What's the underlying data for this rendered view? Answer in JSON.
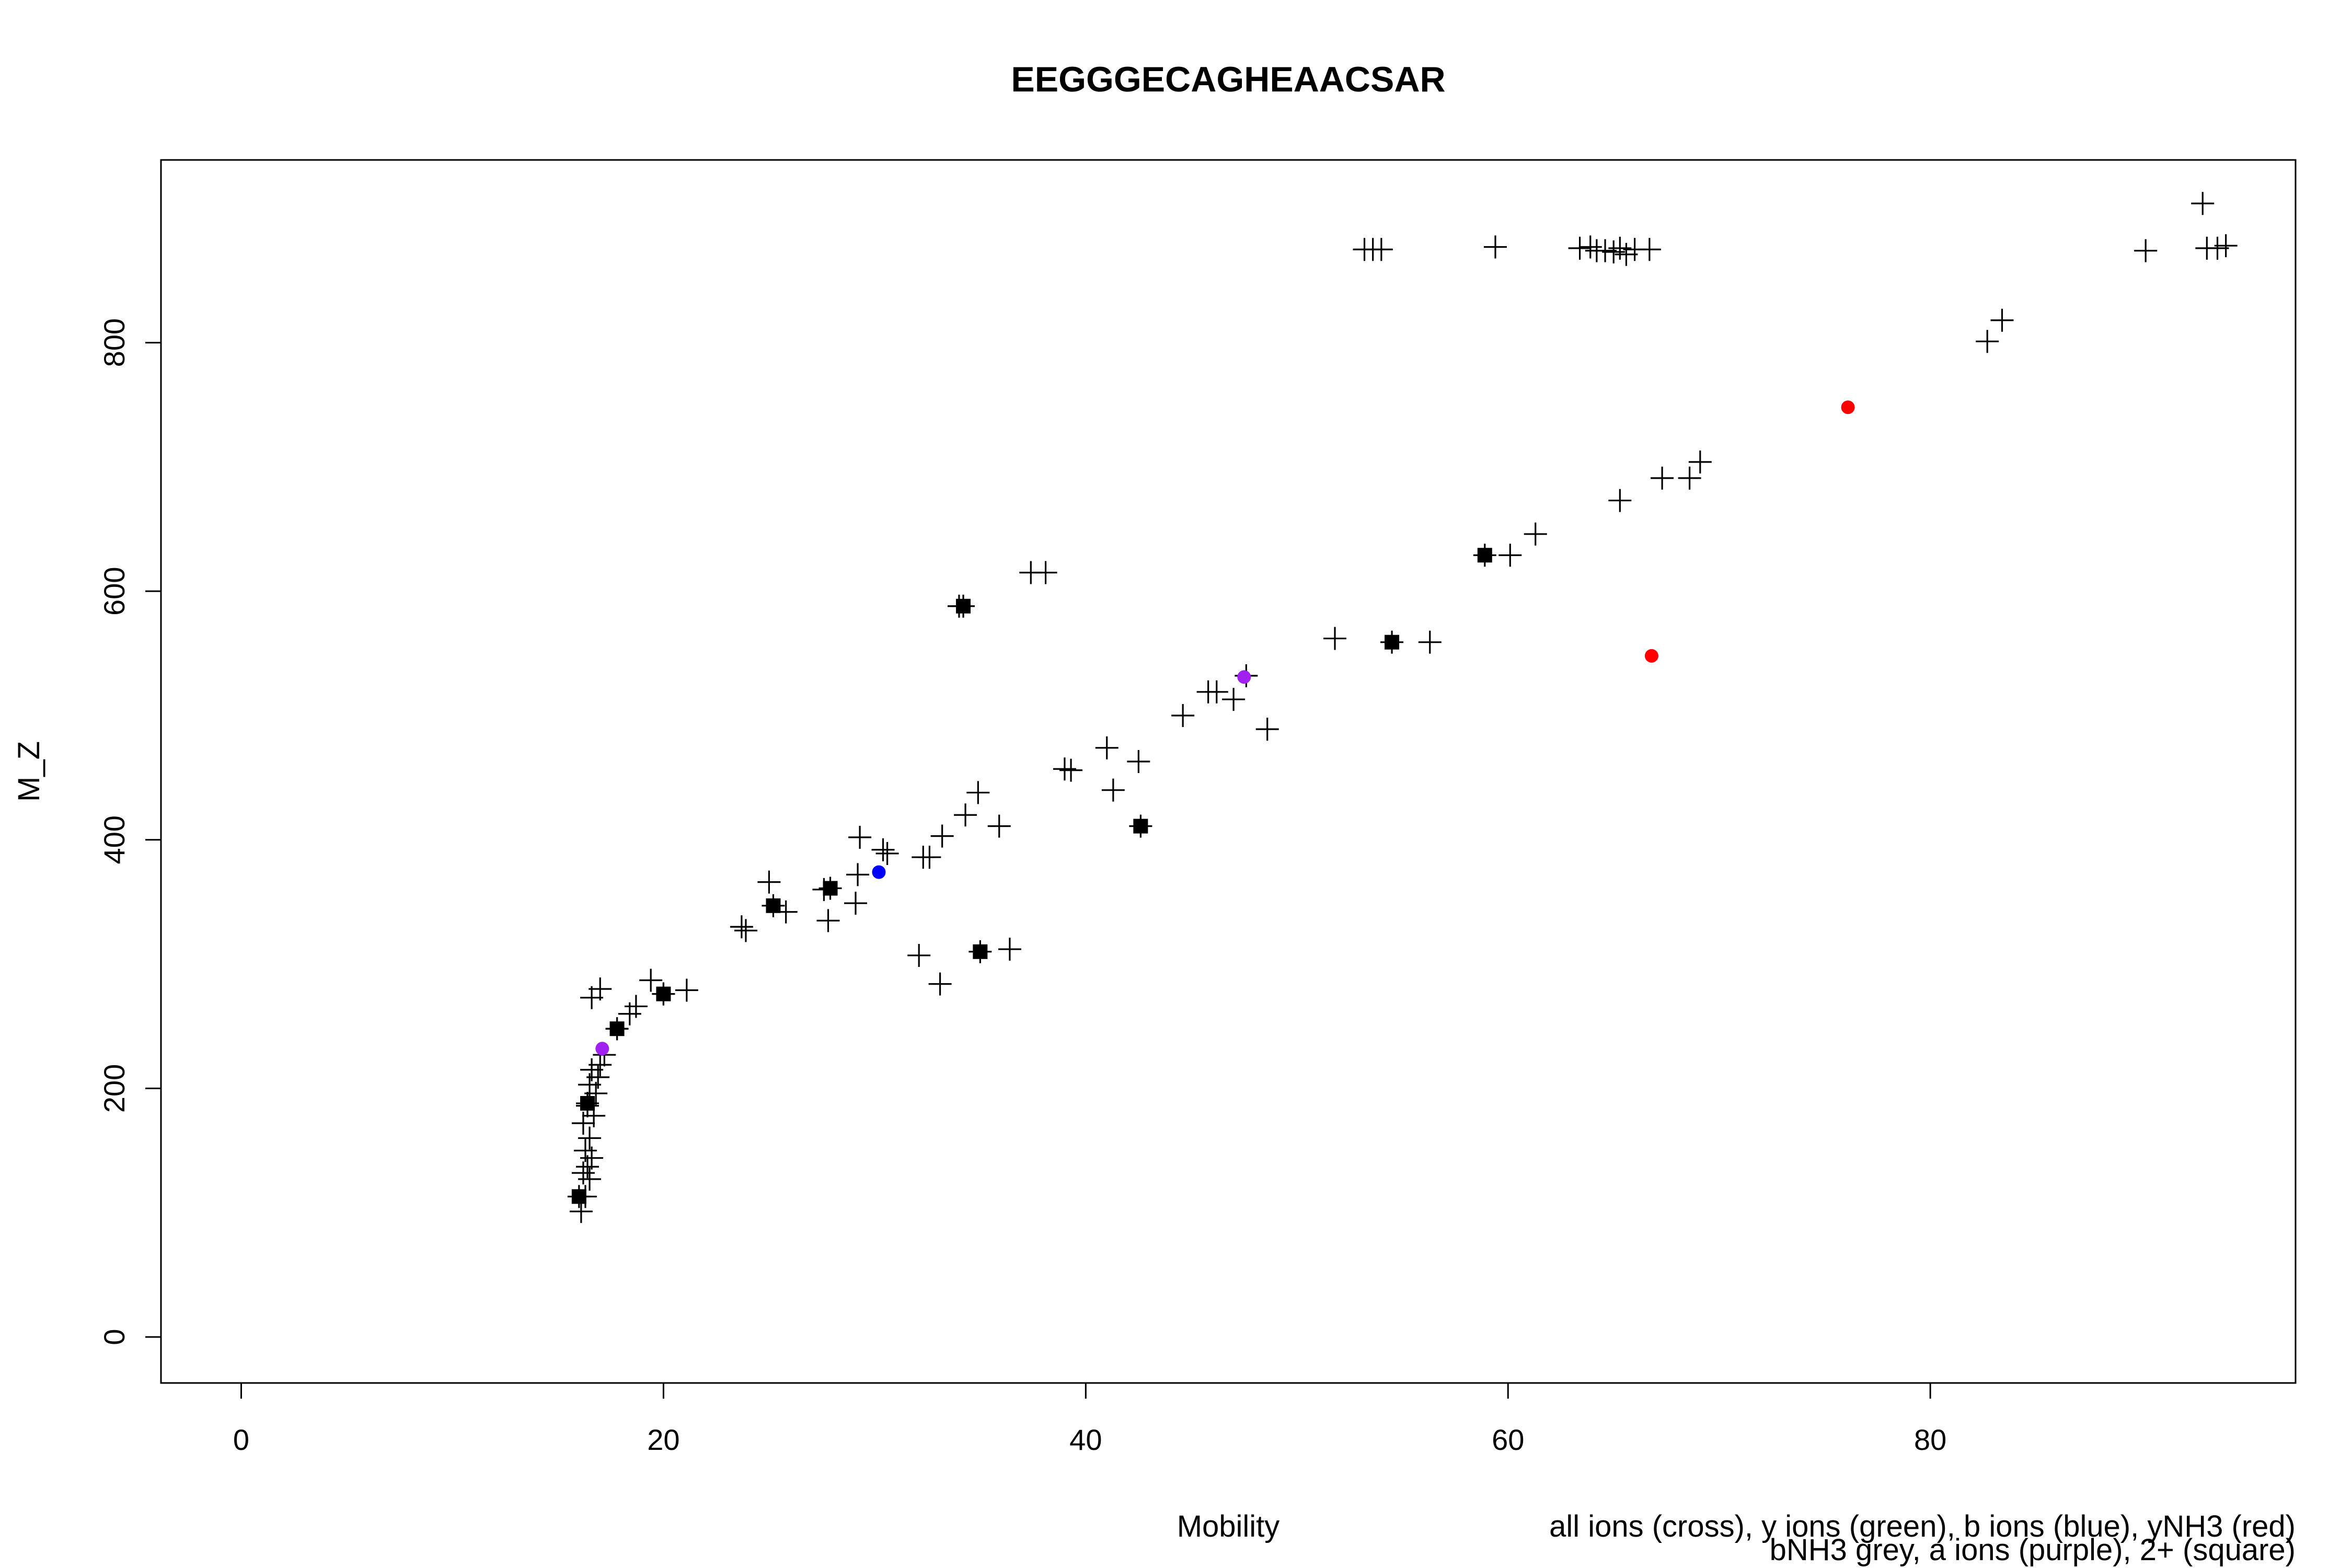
{
  "chart_data": {
    "type": "scatter",
    "title": "EEGGGECAGHEAACSAR",
    "xlabel": "Mobility",
    "ylabel": "M_Z",
    "xlim": [
      -3.8,
      97.3
    ],
    "ylim": [
      -37,
      947
    ],
    "xticks": [
      0,
      20,
      40,
      60,
      80
    ],
    "yticks": [
      0,
      200,
      400,
      600,
      800
    ],
    "grid": false,
    "legend_lines": [
      "all ions (cross), y ions (green), b ions (blue), yNH3 (red)",
      "bNH3 grey, a ions (purple), 2+ (square)"
    ],
    "colors": {
      "all": "#000000",
      "y": "#00a000",
      "b": "#0000ff",
      "yNH3": "#ff0000",
      "bNH3": "#808080",
      "a": "#a020f0",
      "doubly_charged": "#000000"
    },
    "series": [
      {
        "name": "all ions (cross)",
        "marker": "cross",
        "points": [
          [
            16.1,
            101
          ],
          [
            16.3,
            113
          ],
          [
            16.5,
            127
          ],
          [
            16.2,
            132
          ],
          [
            16.4,
            137
          ],
          [
            16.6,
            144
          ],
          [
            16.3,
            150
          ],
          [
            16.5,
            160
          ],
          [
            16.2,
            172
          ],
          [
            16.7,
            178
          ],
          [
            16.4,
            186
          ],
          [
            16.8,
            196
          ],
          [
            16.5,
            203
          ],
          [
            16.9,
            209
          ],
          [
            16.6,
            215
          ],
          [
            17.0,
            219
          ],
          [
            17.2,
            227
          ],
          [
            16.6,
            273
          ],
          [
            17.0,
            280
          ],
          [
            17.8,
            248
          ],
          [
            18.4,
            260
          ],
          [
            18.7,
            266
          ],
          [
            19.4,
            287
          ],
          [
            20.0,
            276
          ],
          [
            21.1,
            279
          ],
          [
            23.7,
            330
          ],
          [
            23.9,
            327
          ],
          [
            25.0,
            366
          ],
          [
            25.8,
            342
          ],
          [
            27.6,
            360
          ],
          [
            27.8,
            335
          ],
          [
            29.1,
            349
          ],
          [
            29.2,
            372
          ],
          [
            29.3,
            402
          ],
          [
            30.4,
            392
          ],
          [
            30.6,
            389
          ],
          [
            32.3,
            386
          ],
          [
            32.6,
            386
          ],
          [
            33.2,
            403
          ],
          [
            34.3,
            420
          ],
          [
            34.9,
            438
          ],
          [
            35.9,
            411
          ],
          [
            32.1,
            307
          ],
          [
            33.1,
            284
          ],
          [
            36.4,
            312
          ],
          [
            34.0,
            588
          ],
          [
            37.4,
            615
          ],
          [
            38.1,
            615
          ],
          [
            39.0,
            457
          ],
          [
            39.3,
            456
          ],
          [
            41.0,
            474
          ],
          [
            41.3,
            440
          ],
          [
            42.5,
            463
          ],
          [
            44.6,
            500
          ],
          [
            45.8,
            519
          ],
          [
            46.2,
            519
          ],
          [
            47.0,
            513
          ],
          [
            47.6,
            532
          ],
          [
            48.6,
            489
          ],
          [
            51.8,
            562
          ],
          [
            56.3,
            559
          ],
          [
            60.1,
            629
          ],
          [
            61.3,
            646
          ],
          [
            65.3,
            673
          ],
          [
            67.3,
            691
          ],
          [
            68.6,
            691
          ],
          [
            69.1,
            704
          ],
          [
            82.7,
            801
          ],
          [
            83.4,
            818
          ],
          [
            53.2,
            875
          ],
          [
            53.6,
            875
          ],
          [
            54.0,
            875
          ],
          [
            59.4,
            877
          ],
          [
            63.4,
            876
          ],
          [
            63.9,
            877
          ],
          [
            64.2,
            874
          ],
          [
            64.6,
            874
          ],
          [
            65.0,
            873
          ],
          [
            65.3,
            876
          ],
          [
            65.6,
            871
          ],
          [
            66.0,
            875
          ],
          [
            66.7,
            875
          ],
          [
            90.2,
            874
          ],
          [
            92.9,
            912
          ],
          [
            93.1,
            876
          ],
          [
            93.6,
            876
          ],
          [
            94.0,
            878
          ]
        ]
      },
      {
        "name": "2+ (square)",
        "marker": "square",
        "points": [
          [
            16.0,
            113
          ],
          [
            16.4,
            188
          ],
          [
            17.8,
            248
          ],
          [
            20.0,
            276
          ],
          [
            25.2,
            347
          ],
          [
            27.9,
            361
          ],
          [
            34.2,
            588
          ],
          [
            35.0,
            310
          ],
          [
            42.6,
            411
          ],
          [
            54.5,
            559
          ],
          [
            58.9,
            629
          ]
        ]
      },
      {
        "name": "b ions (blue)",
        "marker": "dot",
        "color": "#0000ff",
        "points": [
          [
            30.2,
            374
          ]
        ]
      },
      {
        "name": "yNH3 (red)",
        "marker": "dot",
        "color": "#ff0000",
        "points": [
          [
            76.1,
            748
          ],
          [
            66.8,
            548
          ]
        ]
      },
      {
        "name": "a ions (purple)",
        "marker": "dot",
        "color": "#a020f0",
        "points": [
          [
            17.1,
            232
          ],
          [
            47.5,
            531
          ]
        ]
      }
    ]
  }
}
